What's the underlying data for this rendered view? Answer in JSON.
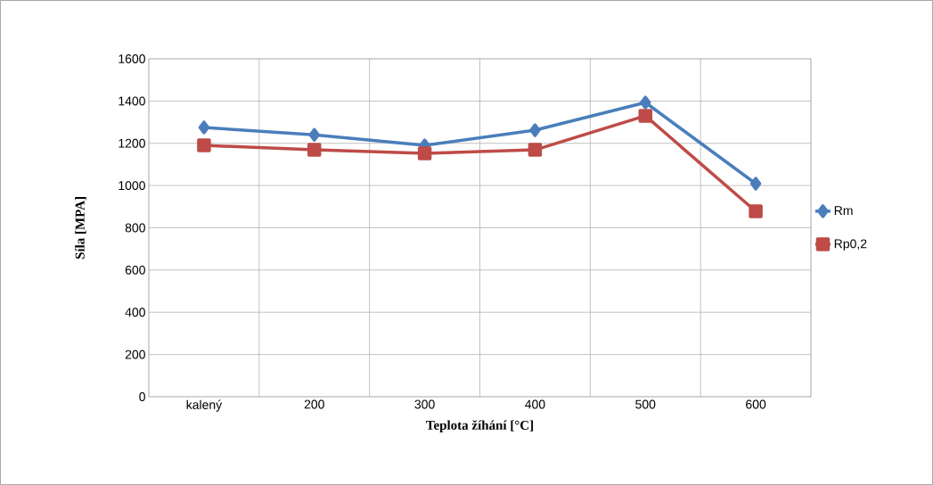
{
  "chart_data": {
    "type": "line",
    "xlabel": "Teplota žíhání [°C]",
    "ylabel": "Síla [MPA]",
    "categories": [
      "kalený",
      "200",
      "300",
      "400",
      "500",
      "600"
    ],
    "series": [
      {
        "name": "Rm",
        "color": "#4a7ebb",
        "marker": "diamond",
        "values": [
          1275,
          1240,
          1190,
          1262,
          1393,
          1009
        ]
      },
      {
        "name": "Rp0,2",
        "color": "#be4b48",
        "marker": "square",
        "values": [
          1190,
          1169,
          1152,
          1169,
          1330,
          878
        ]
      }
    ],
    "ylim": [
      0,
      1600
    ],
    "yticks": [
      0,
      200,
      400,
      600,
      800,
      1000,
      1200,
      1400,
      1600
    ],
    "grid": true,
    "legend": "right",
    "line_style": "solid"
  }
}
